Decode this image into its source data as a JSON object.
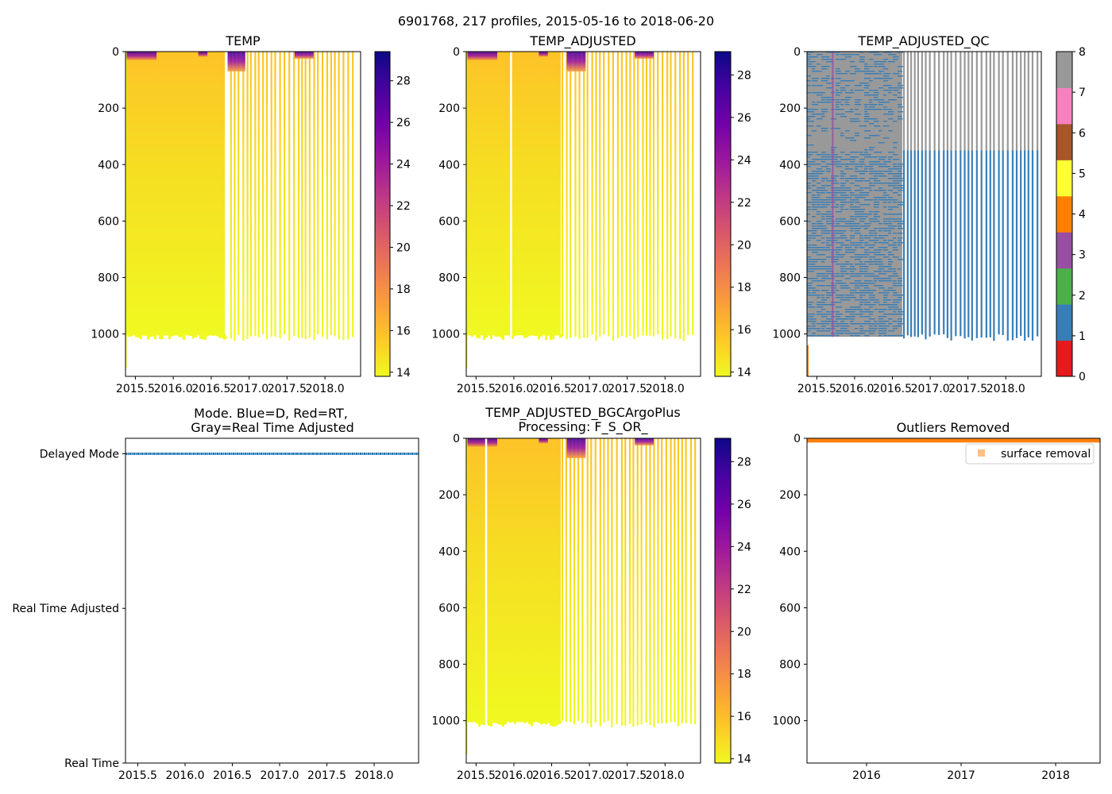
{
  "suptitle": "6901768, 217 profiles, 2015-05-16 to 2018-06-20",
  "colors": {
    "plasma_r": [
      "#f0f921",
      "#fdca26",
      "#fb9f3a",
      "#ed7953",
      "#d8576b",
      "#bd3786",
      "#9c179e",
      "#7201a8",
      "#46039f",
      "#0d0887"
    ],
    "qc": [
      "#e41a1c",
      "#377eb8",
      "#4daf4a",
      "#984ea3",
      "#ff7f00",
      "#ffff33",
      "#a65628",
      "#f781bf",
      "#999999"
    ],
    "mode_delayed": "#1f77b4",
    "surface_removal": "#ff7f0e"
  },
  "chart_data": [
    {
      "id": "temp",
      "type": "heatmap",
      "title": "TEMP",
      "x_ticks": [
        2015.5,
        2016.0,
        2016.5,
        2017.0,
        2017.5,
        2018.0
      ],
      "x_tick_labels": [
        "2015.5",
        "2016.0",
        "2016.5",
        "2017.0",
        "2017.5",
        "2018.0"
      ],
      "xlim": [
        2015.37,
        2018.47
      ],
      "y_ticks": [
        0,
        200,
        400,
        600,
        800,
        1000
      ],
      "y_tick_labels": [
        "0",
        "200",
        "400",
        "600",
        "800",
        "1000"
      ],
      "ylim": [
        1150,
        0
      ],
      "colorbar": {
        "ticks": [
          14,
          16,
          18,
          20,
          22,
          24,
          26,
          28
        ],
        "labels": [
          "14",
          "16",
          "18",
          "20",
          "22",
          "24",
          "26",
          "28"
        ],
        "range": [
          13.8,
          29.4
        ]
      },
      "note": "Temperature vs pressure; ~14-15 at depth, up to ~29 at surface; profiles reach ~1000-1020 dbar"
    },
    {
      "id": "temp_adj",
      "type": "heatmap",
      "title": "TEMP_ADJUSTED",
      "x_ticks": [
        2015.5,
        2016.0,
        2016.5,
        2017.0,
        2017.5,
        2018.0
      ],
      "x_tick_labels": [
        "2015.5",
        "2016.0",
        "2016.5",
        "2017.0",
        "2017.5",
        "2018.0"
      ],
      "xlim": [
        2015.37,
        2018.47
      ],
      "y_ticks": [
        0,
        200,
        400,
        600,
        800,
        1000
      ],
      "y_tick_labels": [
        "0",
        "200",
        "400",
        "600",
        "800",
        "1000"
      ],
      "ylim": [
        1150,
        0
      ],
      "colorbar": {
        "ticks": [
          14,
          16,
          18,
          20,
          22,
          24,
          26,
          28
        ],
        "labels": [
          "14",
          "16",
          "18",
          "20",
          "22",
          "24",
          "26",
          "28"
        ],
        "range": [
          13.8,
          29.1
        ]
      }
    },
    {
      "id": "temp_qc",
      "type": "heatmap",
      "title": "TEMP_ADJUSTED_QC",
      "x_ticks": [
        2015.5,
        2016.0,
        2016.5,
        2017.0,
        2017.5,
        2018.0
      ],
      "x_tick_labels": [
        "2015.5",
        "2016.0",
        "2016.5",
        "2017.0",
        "2017.5",
        "2018.0"
      ],
      "xlim": [
        2015.37,
        2018.47
      ],
      "y_ticks": [
        0,
        200,
        400,
        600,
        800,
        1000
      ],
      "y_tick_labels": [
        "0",
        "200",
        "400",
        "600",
        "800",
        "1000"
      ],
      "ylim": [
        1150,
        0
      ],
      "colorbar": {
        "ticks": [
          0,
          1,
          2,
          3,
          4,
          5,
          6,
          7,
          8
        ],
        "labels": [
          "0",
          "1",
          "2",
          "3",
          "4",
          "5",
          "6",
          "7",
          "8"
        ],
        "range": [
          0,
          8
        ]
      },
      "note": "QC flags mostly 1 (good, blue) and 8 (gray); early block gray; purple (3) line near 2015.7"
    },
    {
      "id": "mode",
      "type": "scatter",
      "title_lines": [
        "Mode. Blue=D, Red=RT,",
        "Gray=Real Time Adjusted"
      ],
      "x_ticks": [
        2015.5,
        2016.0,
        2016.5,
        2017.0,
        2017.5,
        2018.0
      ],
      "x_tick_labels": [
        "2015.5",
        "2016.0",
        "2016.5",
        "2017.0",
        "2017.5",
        "2018.0"
      ],
      "xlim": [
        2015.37,
        2018.47
      ],
      "y_categories": [
        "Delayed Mode",
        "Real Time Adjusted",
        "Real Time"
      ],
      "y_values": [
        2,
        1,
        0
      ],
      "series": [
        {
          "name": "Delayed Mode",
          "value": 2,
          "x_range": [
            2015.37,
            2018.47
          ]
        }
      ]
    },
    {
      "id": "bgc",
      "type": "heatmap",
      "title_lines": [
        "TEMP_ADJUSTED_BGCArgoPlus",
        "Processing: F_S_OR_"
      ],
      "x_ticks": [
        2015.5,
        2016.0,
        2016.5,
        2017.0,
        2017.5,
        2018.0
      ],
      "x_tick_labels": [
        "2015.5",
        "2016.0",
        "2016.5",
        "2017.0",
        "2017.5",
        "2018.0"
      ],
      "xlim": [
        2015.37,
        2018.47
      ],
      "y_ticks": [
        0,
        200,
        400,
        600,
        800,
        1000
      ],
      "y_tick_labels": [
        "0",
        "200",
        "400",
        "600",
        "800",
        "1000"
      ],
      "ylim": [
        1150,
        0
      ],
      "colorbar": {
        "ticks": [
          14,
          16,
          18,
          20,
          22,
          24,
          26,
          28
        ],
        "labels": [
          "14",
          "16",
          "18",
          "20",
          "22",
          "24",
          "26",
          "28"
        ],
        "range": [
          13.8,
          29.1
        ]
      }
    },
    {
      "id": "outliers",
      "type": "scatter",
      "title": "Outliers Removed",
      "x_ticks": [
        2016,
        2017,
        2018
      ],
      "x_tick_labels": [
        "2016",
        "2017",
        "2018"
      ],
      "xlim": [
        2015.37,
        2018.47
      ],
      "y_ticks": [
        0,
        200,
        400,
        600,
        800,
        1000
      ],
      "y_tick_labels": [
        "0",
        "200",
        "400",
        "600",
        "800",
        "1000"
      ],
      "ylim": [
        1150,
        0
      ],
      "legend": [
        "surface removal"
      ],
      "legend_loc": "upper right",
      "series": [
        {
          "name": "surface removal",
          "pressure_range": [
            0,
            15
          ],
          "x_range": [
            2015.37,
            2018.47
          ]
        }
      ]
    }
  ]
}
